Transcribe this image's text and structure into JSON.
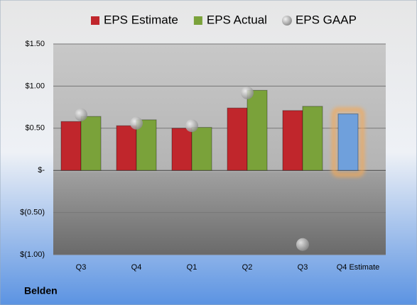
{
  "chart_data": {
    "type": "bar",
    "footer": "Belden",
    "categories": [
      "Q3",
      "Q4",
      "Q1",
      "Q2",
      "Q3",
      "Q4 Estimate"
    ],
    "series": [
      {
        "name": "EPS Estimate",
        "color": "#c0262c",
        "colors": [
          "#c0262c",
          "#c0262c",
          "#c0262c",
          "#c0262c",
          "#c0262c",
          "#6fa0dc"
        ],
        "values": [
          0.58,
          0.53,
          0.5,
          0.74,
          0.71,
          0.67
        ]
      },
      {
        "name": "EPS Actual",
        "color": "#7aa23a",
        "values": [
          0.64,
          0.6,
          0.51,
          0.95,
          0.76,
          null
        ]
      },
      {
        "name": "EPS GAAP",
        "color": "#a8a8a8",
        "type": "scatter",
        "values": [
          0.66,
          0.56,
          0.53,
          0.92,
          -0.88,
          null
        ]
      }
    ],
    "ylim": [
      -1.0,
      1.5
    ],
    "yticks": [
      {
        "value": -1.0,
        "label": "$(1.00)"
      },
      {
        "value": -0.5,
        "label": "$(0.50)"
      },
      {
        "value": 0,
        "label": "$-"
      },
      {
        "value": 0.5,
        "label": "$0.50"
      },
      {
        "value": 1.0,
        "label": "$1.00"
      },
      {
        "value": 1.5,
        "label": "$1.50"
      }
    ],
    "grid": true,
    "legend": "top"
  }
}
